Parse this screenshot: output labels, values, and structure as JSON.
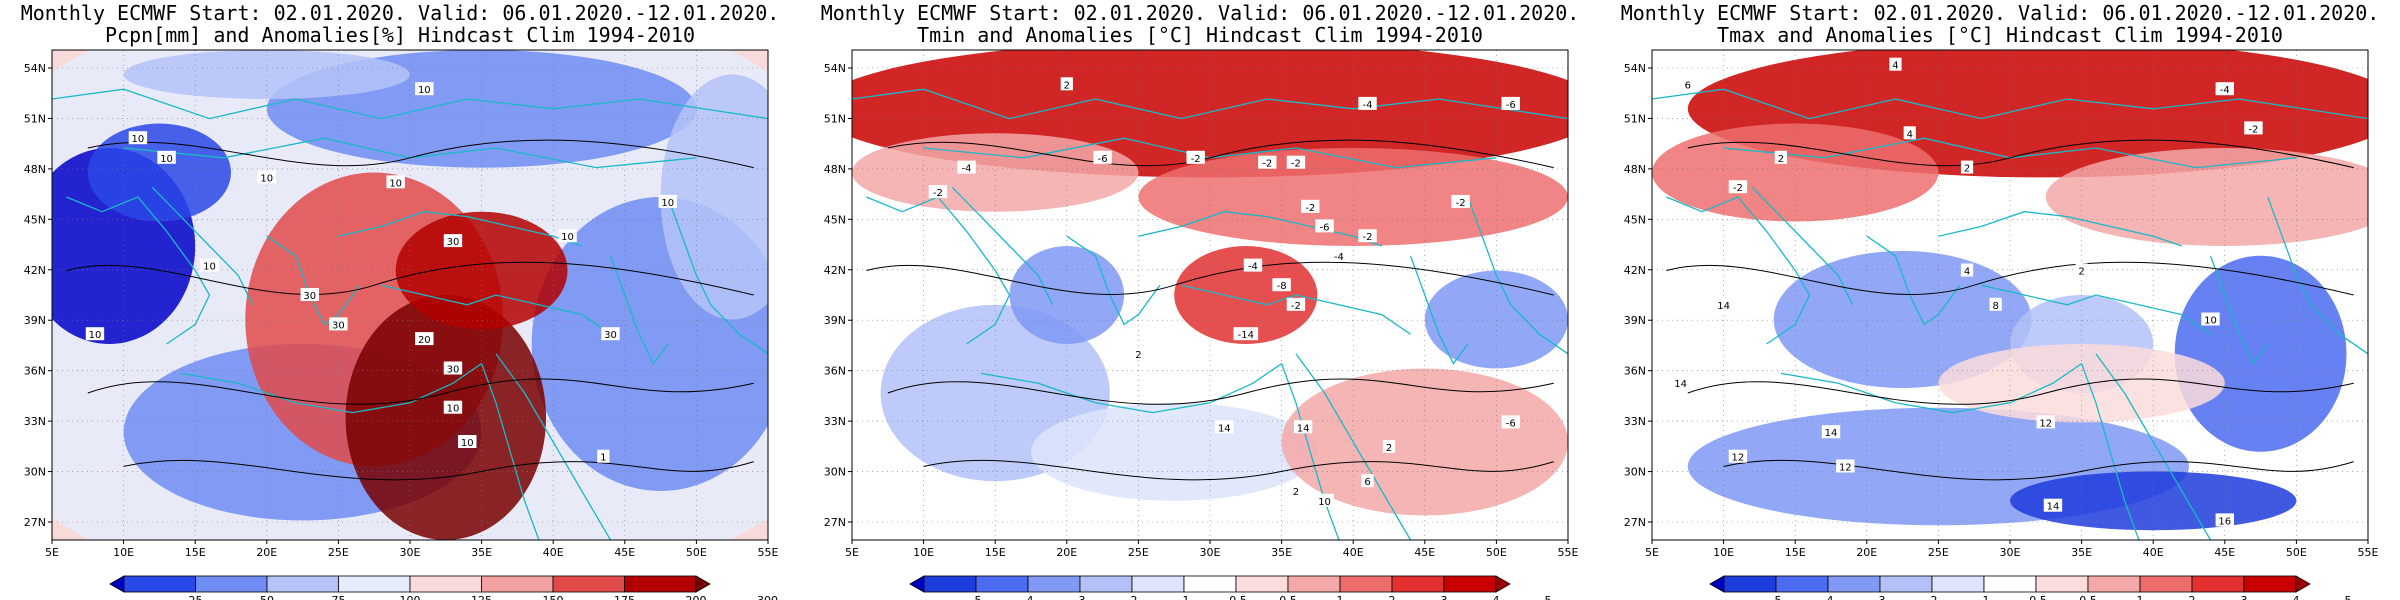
{
  "panels": [
    {
      "id": "precip",
      "title_line1": "Monthly ECMWF Start: 02.01.2020. Valid: 06.01.2020.-12.01.2020.",
      "title_line2": "Pcpn[mm] and Anomalies[%] Hindcast Clim 1994-2010",
      "variable": "precipitation anomaly",
      "colorbar": {
        "labels": [
          "25",
          "50",
          "75",
          "100",
          "125",
          "150",
          "175",
          "200",
          "300"
        ],
        "colors": [
          "#0000c8",
          "#2a48e8",
          "#6f8cf2",
          "#b4c3f8",
          "#e6ecfc",
          "#f9dada",
          "#f2a0a0",
          "#e24a4a",
          "#b40000",
          "#780000"
        ]
      },
      "contour_labels": [
        "10",
        "10",
        "10",
        "10",
        "10",
        "10",
        "10",
        "10",
        "30",
        "30",
        "30",
        "30",
        "30",
        "20",
        "10",
        "10",
        "10",
        "1"
      ]
    },
    {
      "id": "tmin",
      "title_line1": "Monthly ECMWF Start: 02.01.2020. Valid: 06.01.2020.-12.01.2020.",
      "title_line2": "Tmin and Anomalies [°C] Hindcast Clim 1994-2010",
      "variable": "minimum temperature anomaly",
      "colorbar": {
        "labels": [
          "-5",
          "-4",
          "-3",
          "-2",
          "-1",
          "-0.5",
          "0.5",
          "1",
          "2",
          "3",
          "4",
          "5"
        ],
        "colors": [
          "#0000c8",
          "#1e3cdc",
          "#4b6cf0",
          "#7f99f5",
          "#b3c1f8",
          "#dde4fb",
          "#ffffff",
          "#fbdcdc",
          "#f5a8a8",
          "#ee6e6e",
          "#e23030",
          "#c80000",
          "#a00000"
        ]
      },
      "contour_labels": [
        "2",
        "-4",
        "-6",
        "-2",
        "-2",
        "-2",
        "-6",
        "-4",
        "-2",
        "-2",
        "-2",
        "-4",
        "-6",
        "-2",
        "-4",
        "-8",
        "-2",
        "-14",
        "2",
        "14",
        "14",
        "10",
        "2",
        "6",
        "2",
        "-6"
      ]
    },
    {
      "id": "tmax",
      "title_line1": "Monthly ECMWF Start: 02.01.2020. Valid: 06.01.2020.-12.01.2020.",
      "title_line2": "Tmax and Anomalies [°C] Hindcast Clim 1994-2010",
      "variable": "maximum temperature anomaly",
      "colorbar": {
        "labels": [
          "-5",
          "-4",
          "-3",
          "-2",
          "-1",
          "-0.5",
          "0.5",
          "1",
          "2",
          "3",
          "4",
          "5"
        ],
        "colors": [
          "#0000c8",
          "#1e3cdc",
          "#4b6cf0",
          "#7f99f5",
          "#b3c1f8",
          "#dde4fb",
          "#ffffff",
          "#fbdcdc",
          "#f5a8a8",
          "#ee6e6e",
          "#e23030",
          "#c80000",
          "#a00000"
        ]
      },
      "contour_labels": [
        "4",
        "6",
        "-4",
        "-2",
        "4",
        "2",
        "2",
        "-2",
        "14",
        "14",
        "12",
        "14",
        "12",
        "12",
        "14",
        "16",
        "10",
        "4",
        "2",
        "8"
      ]
    }
  ],
  "axes": {
    "x_ticks": [
      "5E",
      "10E",
      "15E",
      "20E",
      "25E",
      "30E",
      "35E",
      "40E",
      "45E",
      "50E",
      "55E"
    ],
    "y_ticks": [
      "27N",
      "30N",
      "33N",
      "36N",
      "39N",
      "42N",
      "45N",
      "48N",
      "51N",
      "54N"
    ]
  }
}
